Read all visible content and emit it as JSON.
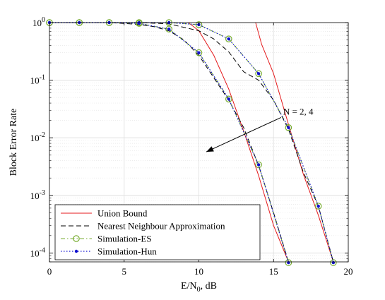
{
  "chart_data": {
    "type": "line",
    "xlabel": "E/N0, dB",
    "ylabel": "Block Error Rate",
    "xlim": [
      0,
      20
    ],
    "ylim": [
      7e-05,
      1
    ],
    "yscale": "log",
    "grid": true,
    "legend_position": "bottom-left",
    "x_ticks": [
      "0",
      "5",
      "10",
      "15",
      "20"
    ],
    "y_ticks": [
      {
        "base": "10",
        "exp": "0",
        "value": 1
      },
      {
        "base": "10",
        "exp": "-1",
        "value": 0.1
      },
      {
        "base": "10",
        "exp": "-2",
        "value": 0.01
      },
      {
        "base": "10",
        "exp": "-3",
        "value": 0.001
      },
      {
        "base": "10",
        "exp": "-4",
        "value": 0.0001
      }
    ],
    "annotation": {
      "text": "N = 2, 4",
      "arrow_from": [
        15.5,
        0.0225
      ],
      "arrow_to": [
        10.5,
        0.0057
      ]
    },
    "series": [
      {
        "name": "Union Bound",
        "color": "#e41a1c",
        "style": "solid",
        "marker": "none",
        "x": [
          9.3,
          10,
          11,
          12,
          13,
          14,
          15,
          16
        ],
        "y": [
          1,
          0.72,
          0.27,
          0.07,
          0.013,
          0.0022,
          0.0003,
          7e-05
        ]
      },
      {
        "name": "Union Bound",
        "color": "#e41a1c",
        "style": "solid",
        "marker": "none",
        "x": [
          13.8,
          14.2,
          15,
          16,
          17,
          18,
          19
        ],
        "y": [
          1,
          0.42,
          0.13,
          0.017,
          0.0023,
          0.00045,
          7e-05
        ]
      },
      {
        "name": "Nearest Neighbour Approximation",
        "color": "#000000",
        "style": "dashed",
        "marker": "none",
        "x": [
          0,
          4,
          6,
          7,
          8,
          9,
          10,
          11,
          12,
          13,
          14,
          15,
          16
        ],
        "y": [
          1,
          1,
          0.93,
          0.85,
          0.72,
          0.5,
          0.27,
          0.11,
          0.045,
          0.015,
          0.0033,
          0.0005,
          7e-05
        ]
      },
      {
        "name": "Nearest Neighbour Approximation",
        "color": "#000000",
        "style": "dashed",
        "marker": "none",
        "x": [
          0,
          6,
          8,
          10,
          11,
          12,
          13,
          14,
          15,
          16,
          17,
          18,
          19
        ],
        "y": [
          1,
          1,
          0.95,
          0.72,
          0.52,
          0.31,
          0.14,
          0.1,
          0.045,
          0.014,
          0.0025,
          0.00065,
          7e-05
        ]
      },
      {
        "name": "Simulation-ES",
        "color": "#77ac30",
        "style": "dashdot",
        "marker": "circle",
        "x": [
          0,
          2,
          4,
          6,
          8,
          10,
          12,
          14,
          16
        ],
        "y": [
          1,
          1,
          1,
          0.97,
          0.77,
          0.3,
          0.047,
          0.0034,
          6.8e-05
        ]
      },
      {
        "name": "Simulation-ES",
        "color": "#77ac30",
        "style": "dashdot",
        "marker": "circle",
        "x": [
          0,
          2,
          4,
          6,
          8,
          10,
          12,
          14,
          16,
          18,
          19
        ],
        "y": [
          1,
          1,
          1,
          1,
          1,
          0.92,
          0.52,
          0.13,
          0.015,
          0.00065,
          6.8e-05
        ]
      },
      {
        "name": "Simulation-Hun",
        "color": "#1010d0",
        "style": "dotted",
        "marker": "dot",
        "x": [
          0,
          2,
          4,
          6,
          8,
          10,
          12,
          14,
          16
        ],
        "y": [
          1,
          1,
          1,
          0.97,
          0.77,
          0.3,
          0.047,
          0.0034,
          6.8e-05
        ]
      },
      {
        "name": "Simulation-Hun",
        "color": "#1010d0",
        "style": "dotted",
        "marker": "dot",
        "x": [
          0,
          2,
          4,
          6,
          8,
          10,
          12,
          14,
          16,
          18,
          19
        ],
        "y": [
          1,
          1,
          1,
          1,
          1,
          0.92,
          0.52,
          0.13,
          0.015,
          0.00065,
          6.8e-05
        ]
      }
    ],
    "legend": [
      {
        "label": "Union Bound",
        "color": "#e41a1c",
        "style": "solid",
        "marker": "none"
      },
      {
        "label": "Nearest Neighbour Approximation",
        "color": "#000000",
        "style": "dashed",
        "marker": "none"
      },
      {
        "label": "Simulation-ES",
        "color": "#77ac30",
        "style": "dashdot",
        "marker": "circle"
      },
      {
        "label": "Simulation-Hun",
        "color": "#1010d0",
        "style": "dotted",
        "marker": "dot"
      }
    ]
  }
}
